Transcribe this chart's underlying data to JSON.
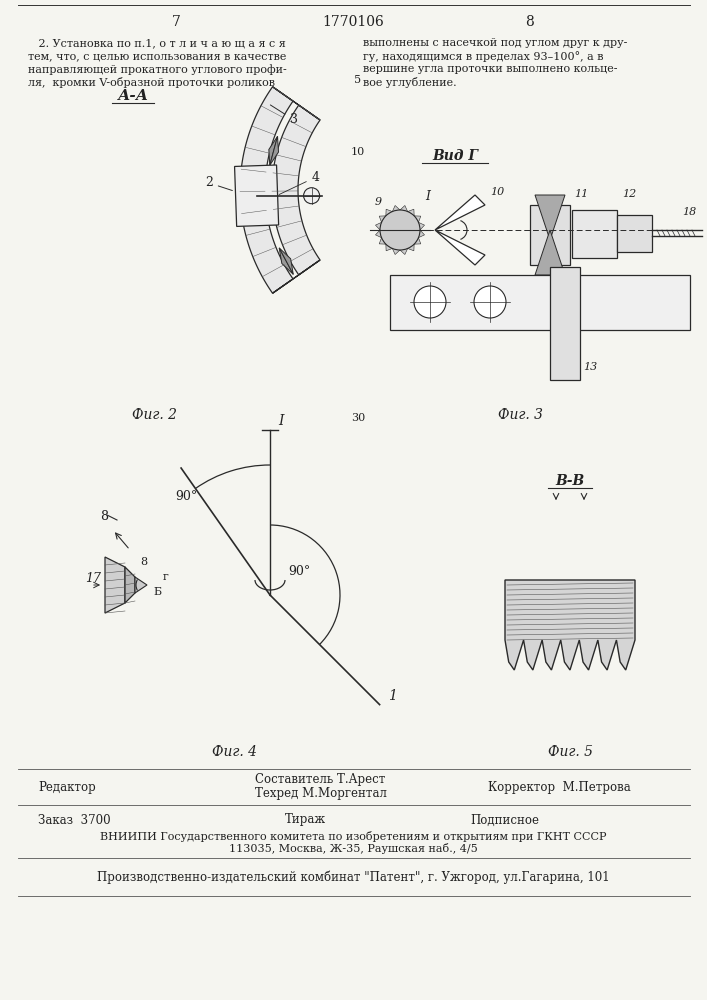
{
  "page_number_left": "7",
  "page_number_center": "1770106",
  "page_number_right": "8",
  "text_left_lines": [
    "   2. Установка по п.1, о т л и ч а ю щ а я с я",
    "тем, что, с целью использования в качестве",
    "направляющей прокатного углового профи-",
    "ля,  кромки V-образной проточки роликов"
  ],
  "text_right_lines": [
    "выполнены с насечкой под углом друг к дру-",
    "гу, находящимся в пределах 93–100°, а в",
    "вершине угла проточки выполнено кольце-",
    "вое углубление."
  ],
  "line_number_5": "5",
  "line_number_10": "10",
  "line_number_30": "30",
  "fig2_label": "Фиг. 2",
  "fig3_label": "Фиг. 3",
  "fig4_label": "Фиг. 4",
  "fig5_label": "Фиг. 5",
  "fig2_caption": "А-А",
  "fig3_caption": "Вид Г",
  "fig5_caption": "В-В",
  "editor_label": "Редактор",
  "compiler_label": "Составитель Т.Арест",
  "techred_label": "Техред М.Моргентал",
  "corrector_label": "Корректор  М.Петрова",
  "order_label": "Заказ  3700",
  "tirazh_label": "Тираж",
  "podpisnoe_label": "Подписное",
  "vniippi_line1": "ВНИИПИ Государственного комитета по изобретениям и открытиям при ГКНТ СССР",
  "vniippi_line2": "113035, Москва, Ж-35, Раушская наб., 4/5",
  "publisher": "Производственно-издательский комбинат \"Патент\", г. Ужгород, ул.Гагарина, 101",
  "bg_color": "#f5f5f0",
  "text_color": "#222222",
  "line_color": "#333333",
  "draw_color": "#2a2a2a",
  "hatch_color": "#555555"
}
